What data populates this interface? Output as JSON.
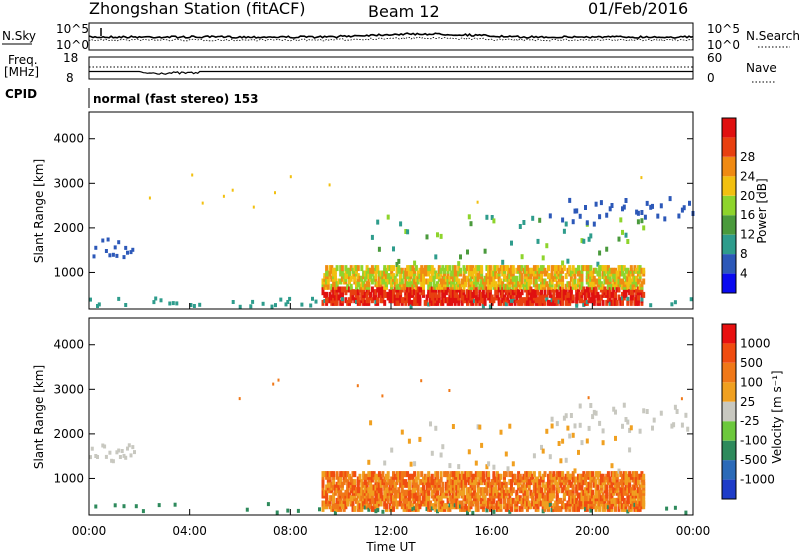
{
  "header": {
    "station": "Zhongshan Station (fitACF)",
    "beam": "Beam 12",
    "date": "01/Feb/2016"
  },
  "top_panels": {
    "nsky_label": "N.Sky",
    "nsearch_label": "N.Search",
    "noise_ticks_left": [
      "10^5",
      "10^0"
    ],
    "noise_ticks_right": [
      "10^5",
      "10^0"
    ],
    "freq_label": "Freq.",
    "freq_unit": "[MHz]",
    "freq_ticks": [
      "18",
      "8"
    ],
    "nave_label": "Nave",
    "nave_ticks": [
      "60",
      "0"
    ],
    "cpid_label": "CPID",
    "cpid_value": "normal (fast stereo) 153"
  },
  "chart_data": [
    {
      "type": "heatmap",
      "name": "power",
      "ylabel": "Slant Range [km]",
      "ylim": [
        180,
        4600
      ],
      "yticks": [
        "1000",
        "2000",
        "3000",
        "4000"
      ],
      "xlim": [
        0,
        24
      ],
      "colorbar_label": "Power [dB]",
      "colorbar_ticks": [
        "4",
        "8",
        "12",
        "16",
        "20",
        "24",
        "28"
      ],
      "colorbar_colors": [
        "#0a0af0",
        "#2c58b8",
        "#2e9c8c",
        "#4a9a3c",
        "#8ed42c",
        "#f2c010",
        "#f08a12",
        "#e84010",
        "#e01010"
      ],
      "grid": false
    },
    {
      "type": "heatmap",
      "name": "velocity",
      "ylabel": "Slant Range [km]",
      "ylim": [
        180,
        4600
      ],
      "yticks": [
        "1000",
        "2000",
        "3000",
        "4000"
      ],
      "xlim": [
        0,
        24
      ],
      "xlabel": "Time UT",
      "xticks": [
        "00:00",
        "04:00",
        "08:00",
        "12:00",
        "16:00",
        "20:00",
        "00:00"
      ],
      "colorbar_label": "Velocity [m s⁻¹]",
      "colorbar_ticks": [
        "1000",
        "500",
        "100",
        "25",
        "-25",
        "-100",
        "-500",
        "-1000"
      ],
      "colorbar_colors": [
        "#1e3cc8",
        "#2b6ab8",
        "#2e8a5c",
        "#6cc83c",
        "#c8c8c0",
        "#f0a020",
        "#f07818",
        "#f04c10",
        "#e81010"
      ],
      "grid": false
    }
  ]
}
